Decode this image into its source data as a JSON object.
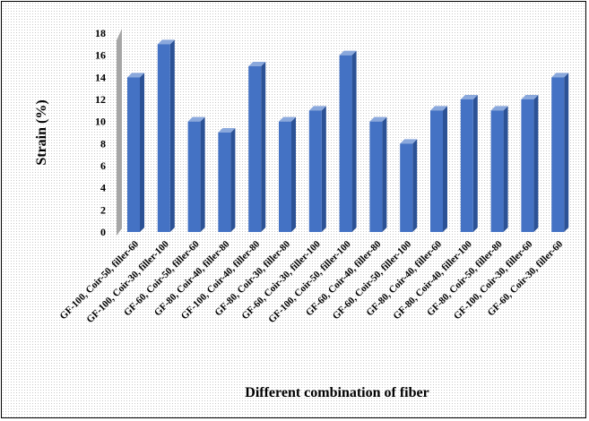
{
  "chart_data": {
    "type": "bar",
    "style": "3d-clustered-column",
    "xlabel": "Different combination of fiber",
    "ylabel": "Strain (%)",
    "ylim": [
      0,
      18
    ],
    "yticks": [
      0,
      2,
      4,
      6,
      8,
      10,
      12,
      14,
      16,
      18
    ],
    "grid": false,
    "legend": "none",
    "categories": [
      "GF-100, Coir-50, filler-60",
      "GF-100, Coir-30, filler-100",
      "GF-60, Coir-50, filler-60",
      "GF-80, Coir-40, filler-80",
      "GF-100, Coir-40, filler-80",
      "GF-80, Coir-30, filler-80",
      "GF-60, Coir-30, filler-100",
      "GF-100, Coir-50, filler-100",
      "GF-60, Coir-40, filler-80",
      "GF-60, Coir-50, filler-100",
      "GF-80, Coir-40, filler-60",
      "GF-80, Coir-40, filler-100",
      "GF-80, Coir-50, filler-80",
      "GF-100, Coir-30, filler-60",
      "GF-60, Coir-30, filler-60"
    ],
    "values": [
      14,
      17,
      10,
      9,
      15,
      10,
      11,
      16,
      10,
      8,
      11,
      12,
      11,
      12,
      14
    ],
    "colors": {
      "bar_front": "#4472c4",
      "bar_side": "#2c5296",
      "bar_top": "#8aa8dc",
      "wall": "#a6a6a6"
    }
  }
}
